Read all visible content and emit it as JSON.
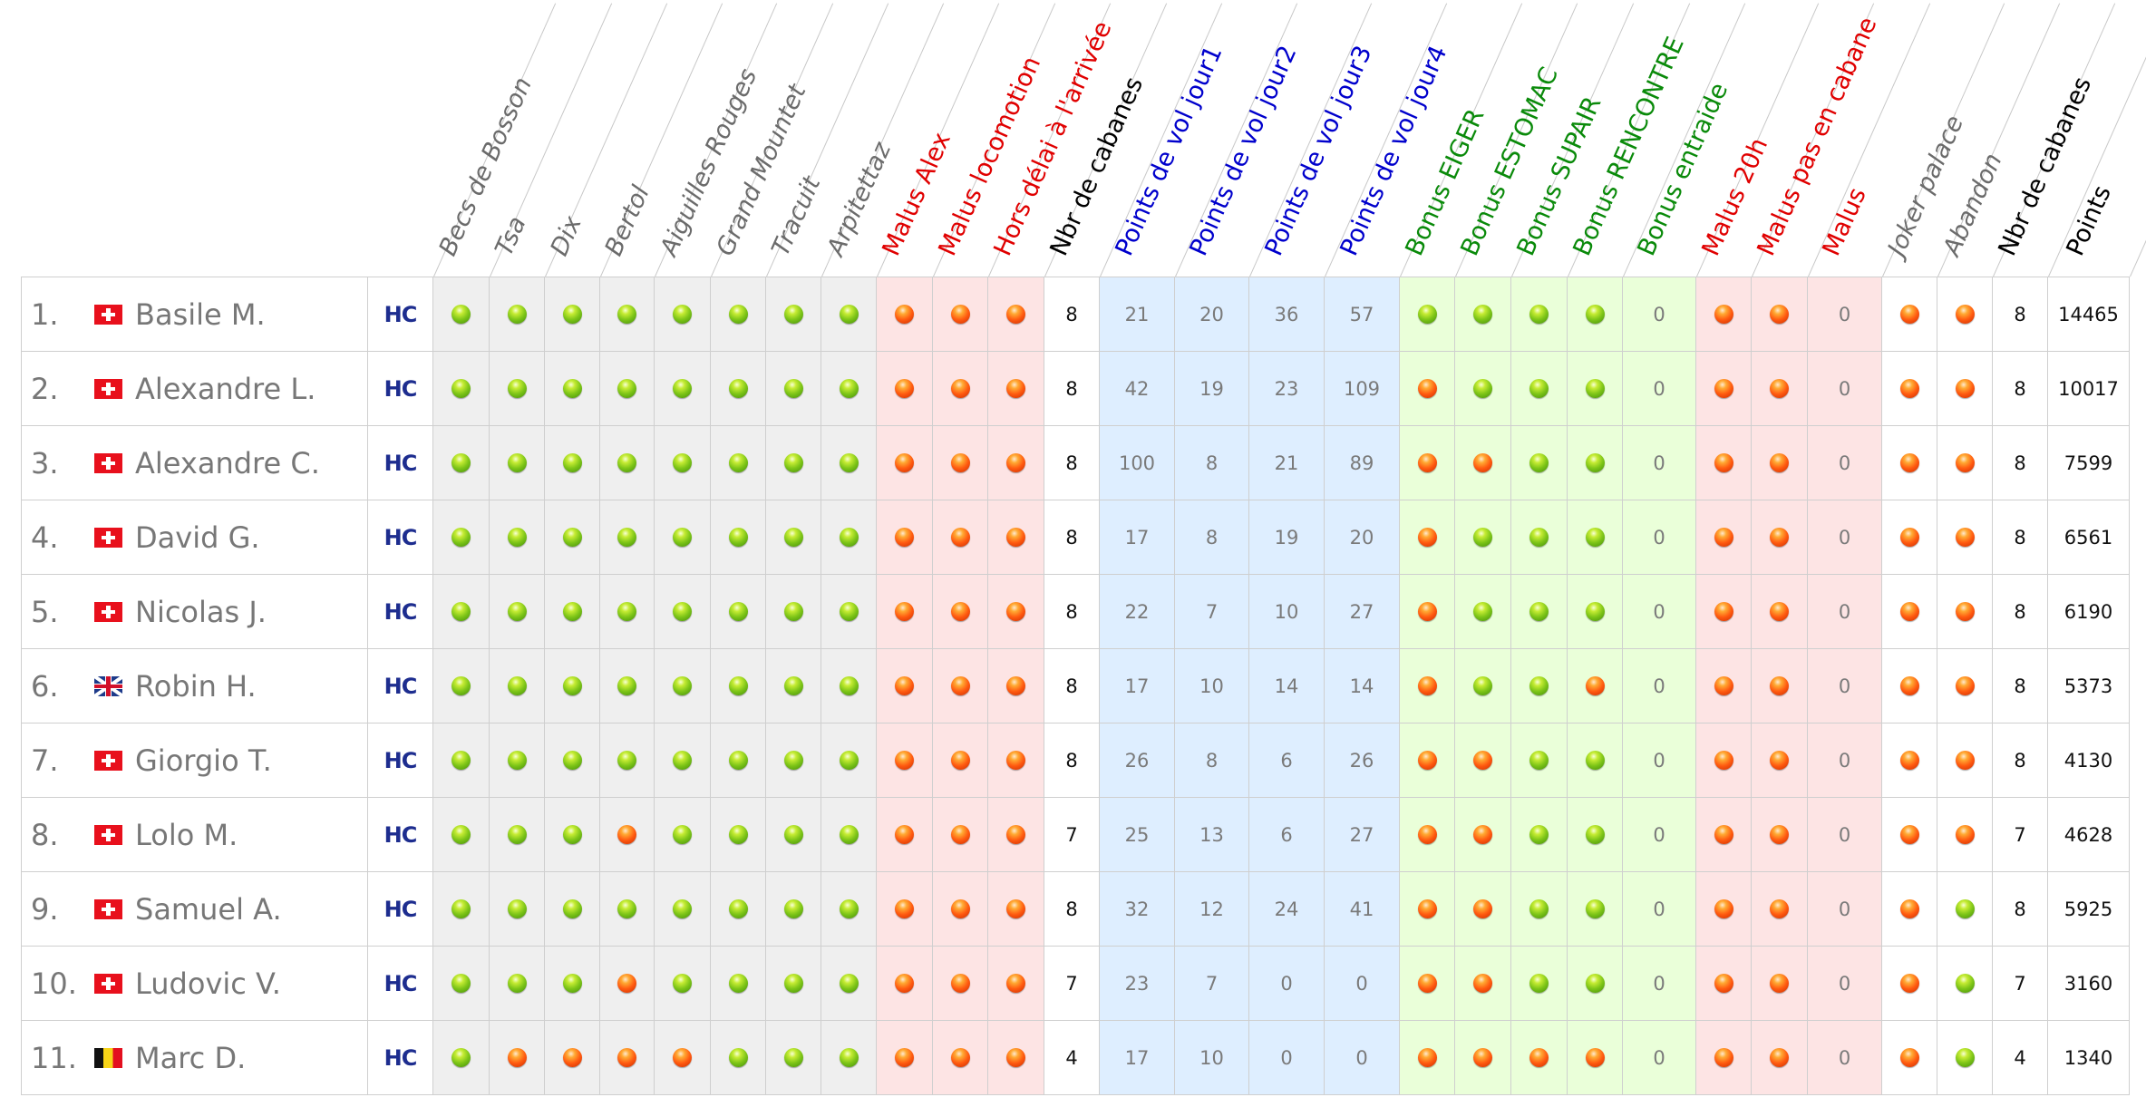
{
  "columns": [
    {
      "label": "Becs de Bosson",
      "color": "gray",
      "type": "dot",
      "bg": "gray"
    },
    {
      "label": "Tsa",
      "color": "gray",
      "type": "dot",
      "bg": "gray"
    },
    {
      "label": "Dix",
      "color": "gray",
      "type": "dot",
      "bg": "gray"
    },
    {
      "label": "Bertol",
      "color": "gray",
      "type": "dot",
      "bg": "gray"
    },
    {
      "label": "Aiguilles Rouges",
      "color": "gray",
      "type": "dot",
      "bg": "gray"
    },
    {
      "label": "Grand Mountet",
      "color": "gray",
      "type": "dot",
      "bg": "gray"
    },
    {
      "label": "Tracuit",
      "color": "gray",
      "type": "dot",
      "bg": "gray"
    },
    {
      "label": "Arpitettaz",
      "color": "gray",
      "type": "dot",
      "bg": "gray"
    },
    {
      "label": "Malus Alex",
      "color": "red",
      "type": "dot",
      "bg": "red"
    },
    {
      "label": "Malus locomotion",
      "color": "red",
      "type": "dot",
      "bg": "red"
    },
    {
      "label": "Hors délai à l'arrivée",
      "color": "red",
      "type": "dot",
      "bg": "red"
    },
    {
      "label": "Nbr de cabanes",
      "color": "black",
      "type": "num",
      "bg": "white"
    },
    {
      "label": "Points de vol jour1",
      "color": "blue",
      "type": "num",
      "bg": "blue"
    },
    {
      "label": "Points de vol jour2",
      "color": "blue",
      "type": "num",
      "bg": "blue"
    },
    {
      "label": "Points de vol jour3",
      "color": "blue",
      "type": "num",
      "bg": "blue"
    },
    {
      "label": "Points de vol jour4",
      "color": "blue",
      "type": "num",
      "bg": "blue"
    },
    {
      "label": "Bonus EIGER",
      "color": "green",
      "type": "dot",
      "bg": "green"
    },
    {
      "label": "Bonus ESTOMAC",
      "color": "green",
      "type": "dot",
      "bg": "green"
    },
    {
      "label": "Bonus SUPAIR",
      "color": "green",
      "type": "dot",
      "bg": "green"
    },
    {
      "label": "Bonus RENCONTRE",
      "color": "green",
      "type": "dot",
      "bg": "green"
    },
    {
      "label": "Bonus entraide",
      "color": "green",
      "type": "num",
      "bg": "green"
    },
    {
      "label": "Malus 20h",
      "color": "red",
      "type": "dot",
      "bg": "red"
    },
    {
      "label": "Malus pas en cabane",
      "color": "red",
      "type": "dot",
      "bg": "red"
    },
    {
      "label": "Malus",
      "color": "red",
      "type": "num",
      "bg": "red"
    },
    {
      "label": "Joker palace",
      "color": "gray",
      "type": "dot",
      "bg": "white"
    },
    {
      "label": "Abandon",
      "color": "gray",
      "type": "dot",
      "bg": "white"
    },
    {
      "label": "Nbr de cabanes",
      "color": "black",
      "type": "num",
      "bg": "white"
    },
    {
      "label": "Points",
      "color": "black",
      "type": "num",
      "bg": "white"
    }
  ],
  "team_logo_text": "HC",
  "rows": [
    {
      "rank": "1.",
      "flag": "ch",
      "name": "Basile M.",
      "values": [
        "g",
        "g",
        "g",
        "g",
        "g",
        "g",
        "g",
        "g",
        "r",
        "r",
        "r",
        "8",
        "21",
        "20",
        "36",
        "57",
        "g",
        "g",
        "g",
        "g",
        "0",
        "r",
        "r",
        "0",
        "r",
        "r",
        "8",
        "14465"
      ]
    },
    {
      "rank": "2.",
      "flag": "ch",
      "name": "Alexandre L.",
      "values": [
        "g",
        "g",
        "g",
        "g",
        "g",
        "g",
        "g",
        "g",
        "r",
        "r",
        "r",
        "8",
        "42",
        "19",
        "23",
        "109",
        "r",
        "g",
        "g",
        "g",
        "0",
        "r",
        "r",
        "0",
        "r",
        "r",
        "8",
        "10017"
      ]
    },
    {
      "rank": "3.",
      "flag": "ch",
      "name": "Alexandre C.",
      "values": [
        "g",
        "g",
        "g",
        "g",
        "g",
        "g",
        "g",
        "g",
        "r",
        "r",
        "r",
        "8",
        "100",
        "8",
        "21",
        "89",
        "r",
        "r",
        "g",
        "g",
        "0",
        "r",
        "r",
        "0",
        "r",
        "r",
        "8",
        "7599"
      ]
    },
    {
      "rank": "4.",
      "flag": "ch",
      "name": "David G.",
      "values": [
        "g",
        "g",
        "g",
        "g",
        "g",
        "g",
        "g",
        "g",
        "r",
        "r",
        "r",
        "8",
        "17",
        "8",
        "19",
        "20",
        "r",
        "g",
        "g",
        "g",
        "0",
        "r",
        "r",
        "0",
        "r",
        "r",
        "8",
        "6561"
      ]
    },
    {
      "rank": "5.",
      "flag": "ch",
      "name": "Nicolas J.",
      "values": [
        "g",
        "g",
        "g",
        "g",
        "g",
        "g",
        "g",
        "g",
        "r",
        "r",
        "r",
        "8",
        "22",
        "7",
        "10",
        "27",
        "r",
        "g",
        "g",
        "g",
        "0",
        "r",
        "r",
        "0",
        "r",
        "r",
        "8",
        "6190"
      ]
    },
    {
      "rank": "6.",
      "flag": "gb",
      "name": "Robin H.",
      "values": [
        "g",
        "g",
        "g",
        "g",
        "g",
        "g",
        "g",
        "g",
        "r",
        "r",
        "r",
        "8",
        "17",
        "10",
        "14",
        "14",
        "r",
        "g",
        "g",
        "r",
        "0",
        "r",
        "r",
        "0",
        "r",
        "r",
        "8",
        "5373"
      ]
    },
    {
      "rank": "7.",
      "flag": "ch",
      "name": "Giorgio T.",
      "values": [
        "g",
        "g",
        "g",
        "g",
        "g",
        "g",
        "g",
        "g",
        "r",
        "r",
        "r",
        "8",
        "26",
        "8",
        "6",
        "26",
        "r",
        "r",
        "g",
        "g",
        "0",
        "r",
        "r",
        "0",
        "r",
        "r",
        "8",
        "4130"
      ]
    },
    {
      "rank": "8.",
      "flag": "ch",
      "name": "Lolo M.",
      "values": [
        "g",
        "g",
        "g",
        "r",
        "g",
        "g",
        "g",
        "g",
        "r",
        "r",
        "r",
        "7",
        "25",
        "13",
        "6",
        "27",
        "r",
        "r",
        "g",
        "g",
        "0",
        "r",
        "r",
        "0",
        "r",
        "r",
        "7",
        "4628"
      ]
    },
    {
      "rank": "9.",
      "flag": "ch",
      "name": "Samuel A.",
      "values": [
        "g",
        "g",
        "g",
        "g",
        "g",
        "g",
        "g",
        "g",
        "r",
        "r",
        "r",
        "8",
        "32",
        "12",
        "24",
        "41",
        "r",
        "r",
        "g",
        "g",
        "0",
        "r",
        "r",
        "0",
        "r",
        "g",
        "8",
        "5925"
      ]
    },
    {
      "rank": "10.",
      "flag": "ch",
      "name": "Ludovic V.",
      "values": [
        "g",
        "g",
        "g",
        "r",
        "g",
        "g",
        "g",
        "g",
        "r",
        "r",
        "r",
        "7",
        "23",
        "7",
        "0",
        "0",
        "r",
        "r",
        "g",
        "g",
        "0",
        "r",
        "r",
        "0",
        "r",
        "g",
        "7",
        "3160"
      ]
    },
    {
      "rank": "11.",
      "flag": "be",
      "name": "Marc D.",
      "values": [
        "g",
        "r",
        "r",
        "r",
        "r",
        "g",
        "g",
        "g",
        "r",
        "r",
        "r",
        "4",
        "17",
        "10",
        "0",
        "0",
        "r",
        "r",
        "r",
        "r",
        "0",
        "r",
        "r",
        "0",
        "r",
        "g",
        "4",
        "1340"
      ]
    }
  ]
}
